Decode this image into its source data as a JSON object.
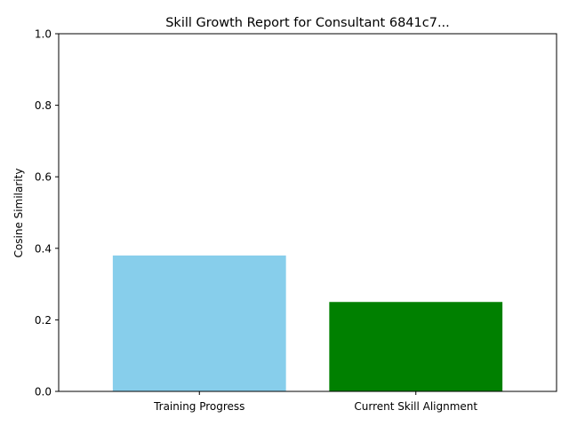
{
  "chart_data": {
    "type": "bar",
    "title": "Skill Growth Report for Consultant 6841c7...",
    "xlabel": "",
    "ylabel": "Cosine Similarity",
    "categories": [
      "Training Progress",
      "Current Skill Alignment"
    ],
    "values": [
      0.38,
      0.25
    ],
    "colors": [
      "#87ceeb",
      "#008000"
    ],
    "ylim": [
      0,
      1
    ],
    "yticks": [
      "0.0",
      "0.2",
      "0.4",
      "0.6",
      "0.8",
      "1.0"
    ],
    "grid": false,
    "legend": "none"
  }
}
